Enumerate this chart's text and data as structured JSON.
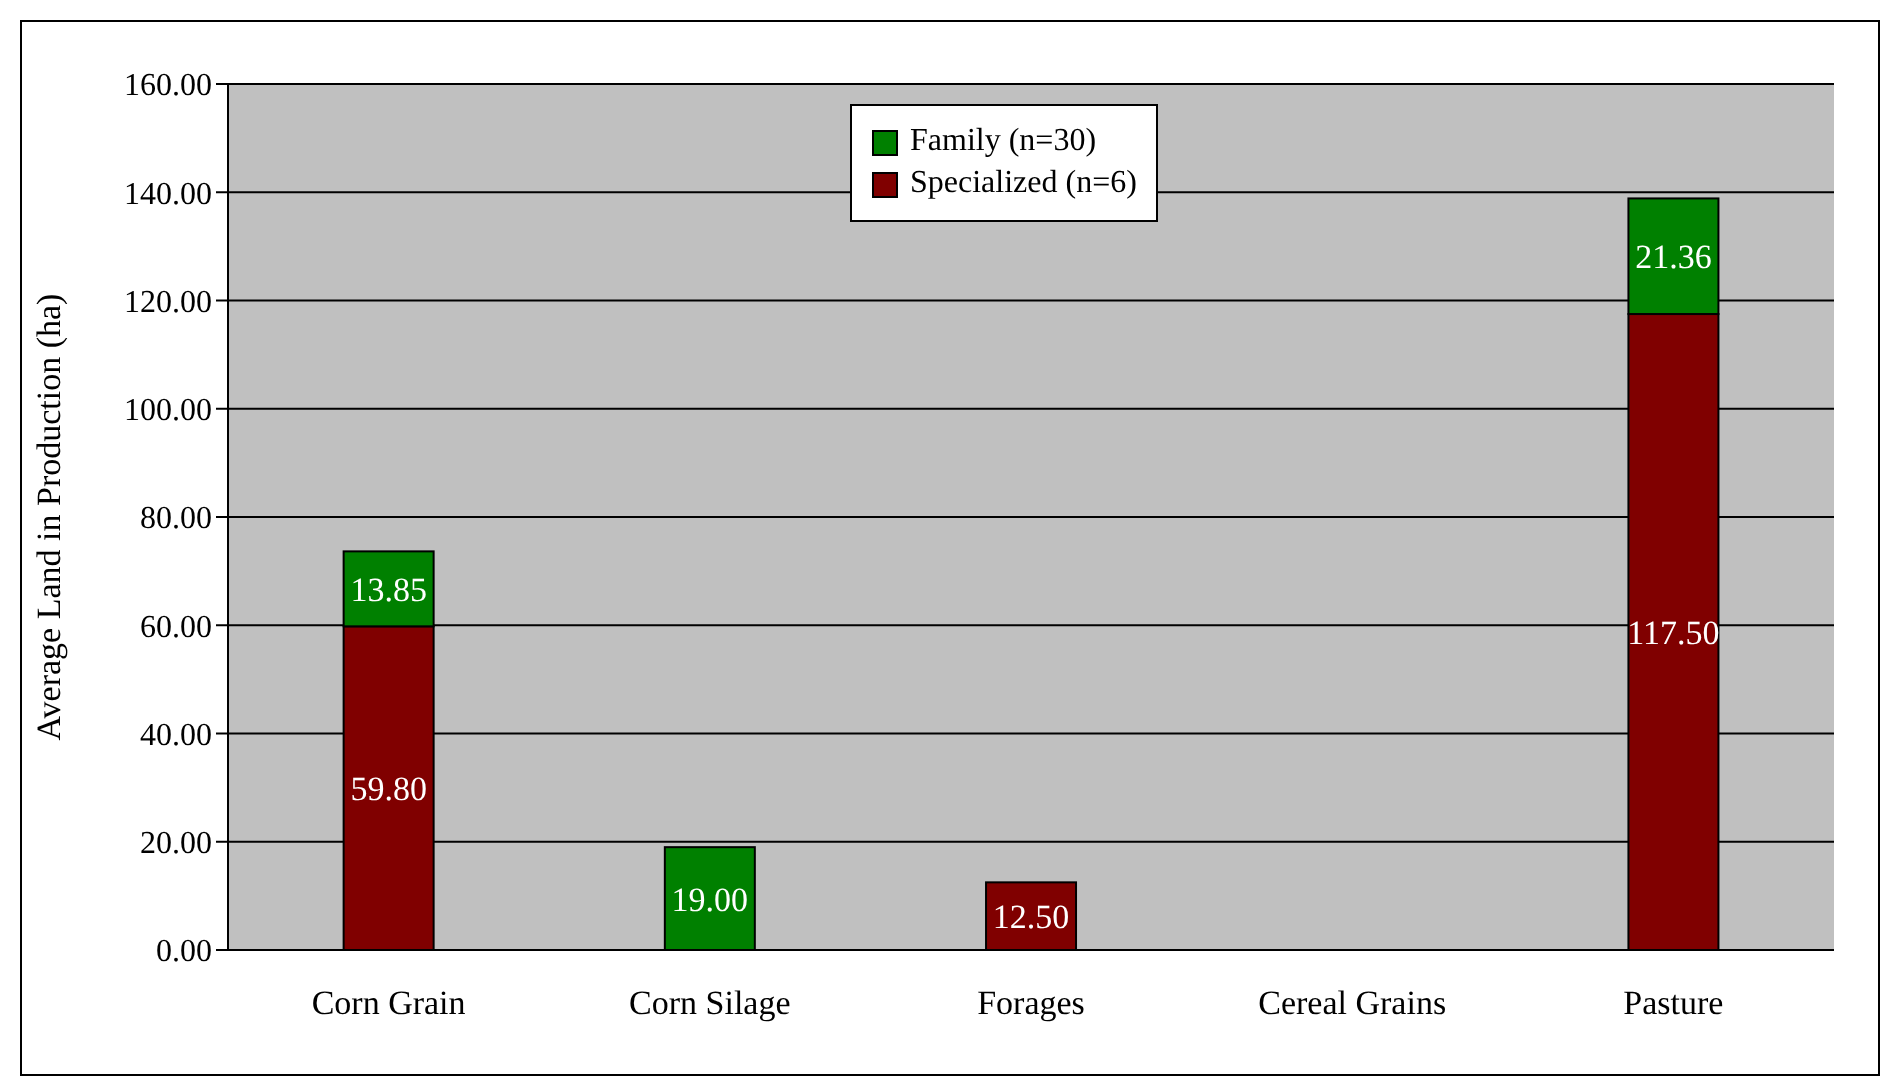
{
  "chart_data": {
    "type": "bar",
    "stacked": true,
    "ylabel": "Average Land in Production (ha)",
    "categories": [
      "Corn Grain",
      "Corn Silage",
      "Forages",
      "Cereal Grains",
      "Pasture"
    ],
    "series": [
      {
        "name": "Specialized (n=6)",
        "color": "#800000",
        "values": [
          59.8,
          null,
          12.5,
          null,
          117.5
        ],
        "value_labels": [
          "59.80",
          null,
          "12.50",
          null,
          "117.50"
        ]
      },
      {
        "name": "Family (n=30)",
        "color": "#008000",
        "values": [
          13.85,
          19.0,
          null,
          null,
          21.36
        ],
        "value_labels": [
          "13.85",
          "19.00",
          null,
          null,
          "21.36"
        ]
      }
    ],
    "ylim": [
      0,
      160
    ],
    "yticks": [
      {
        "value": 0,
        "label": "0.00"
      },
      {
        "value": 20,
        "label": "20.00"
      },
      {
        "value": 40,
        "label": "40.00"
      },
      {
        "value": 60,
        "label": "60.00"
      },
      {
        "value": 80,
        "label": "80.00"
      },
      {
        "value": 100,
        "label": "100.00"
      },
      {
        "value": 120,
        "label": "120.00"
      },
      {
        "value": 140,
        "label": "140.00"
      },
      {
        "value": 160,
        "label": "160.00"
      }
    ],
    "grid": "y",
    "legend": "top"
  }
}
